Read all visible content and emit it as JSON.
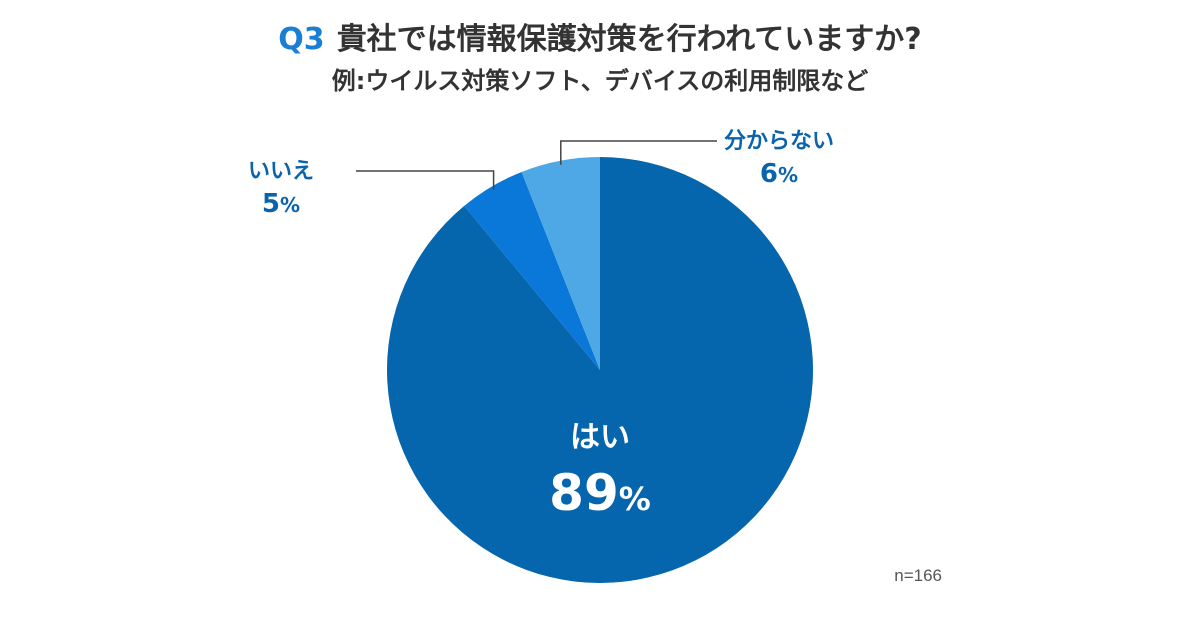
{
  "title": {
    "q_number": "Q3",
    "question": "貴社では情報保護対策を行われていますか?",
    "subtitle": "例:ウイルス対策ソフト、デバイスの利用制限など"
  },
  "sample_size": "n=166",
  "chart_data": {
    "type": "pie",
    "title": "貴社では情報保護対策を行われていますか?",
    "subtitle": "例:ウイルス対策ソフト、デバイスの利用制限など",
    "start": "12 o'clock, clockwise",
    "slices": [
      {
        "label": "はい",
        "value": 89,
        "pct_text": "89",
        "color": "#0565ad",
        "label_placement": "inside"
      },
      {
        "label": "いいえ",
        "value": 5,
        "pct_text": "5",
        "color": "#0a78d8",
        "label_placement": "outside-left"
      },
      {
        "label": "分からない",
        "value": 6,
        "pct_text": "6",
        "color": "#4ea8e6",
        "label_placement": "outside-top"
      }
    ],
    "label_color_outside": "#0a63ad",
    "label_color_inside": "#ffffff",
    "percent_suffix": "%"
  }
}
